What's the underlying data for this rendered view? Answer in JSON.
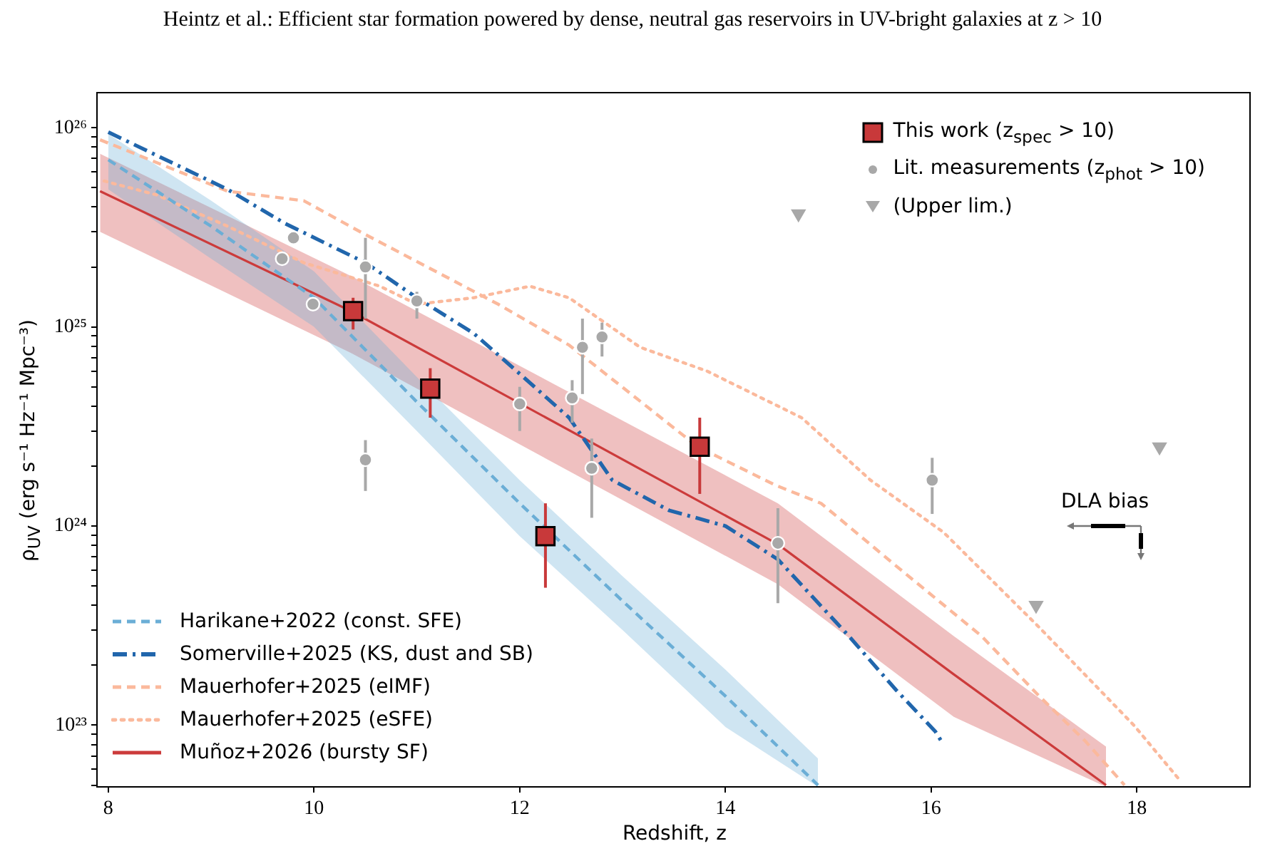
{
  "chart_data": {
    "type": "line",
    "title": "Heintz et al.: Efficient star formation powered by dense, neutral gas reservoirs in UV-bright galaxies at z > 10",
    "xlabel": "Redshift, z",
    "ylabel": "ρ$_{UV}$ (erg s⁻¹ Hz⁻¹ Mpc⁻³)",
    "annotations": [
      "DLA bias"
    ],
    "xlim": [
      7.89,
      19.1
    ],
    "xticks": [
      8,
      10,
      12,
      14,
      16,
      18
    ],
    "ylim": [
      4.9e+22,
      1.5e+26
    ],
    "log": true,
    "yticks": [
      {
        "value": 5e+22,
        "label": null
      },
      {
        "value": 6e+22,
        "label": null
      },
      {
        "value": 7e+22,
        "label": null
      },
      {
        "value": 8e+22,
        "label": null
      },
      {
        "value": 9e+22,
        "label": null
      },
      {
        "value": 1e+23,
        "label": "10²³"
      },
      {
        "value": 2e+23,
        "label": null
      },
      {
        "value": 3e+23,
        "label": null
      },
      {
        "value": 4e+23,
        "label": null
      },
      {
        "value": 5e+23,
        "label": null
      },
      {
        "value": 6e+23,
        "label": null
      },
      {
        "value": 7e+23,
        "label": null
      },
      {
        "value": 8e+23,
        "label": null
      },
      {
        "value": 9e+23,
        "label": null
      },
      {
        "value": 1e+24,
        "label": "10²⁴"
      },
      {
        "value": 2e+24,
        "label": null
      },
      {
        "value": 3e+24,
        "label": null
      },
      {
        "value": 4e+24,
        "label": null
      },
      {
        "value": 5e+24,
        "label": null
      },
      {
        "value": 6e+24,
        "label": null
      },
      {
        "value": 7e+24,
        "label": null
      },
      {
        "value": 8e+24,
        "label": null
      },
      {
        "value": 9e+24,
        "label": null
      },
      {
        "value": 1e+25,
        "label": "10²⁵"
      },
      {
        "value": 2e+25,
        "label": null
      },
      {
        "value": 3e+25,
        "label": null
      },
      {
        "value": 4e+25,
        "label": null
      },
      {
        "value": 5e+25,
        "label": null
      },
      {
        "value": 6e+25,
        "label": null
      },
      {
        "value": 7e+25,
        "label": null
      },
      {
        "value": 8e+25,
        "label": null
      },
      {
        "value": 9e+25,
        "label": null
      },
      {
        "value": 1e+26,
        "label": "10²⁶"
      }
    ],
    "grid": false,
    "legend": "bottom left",
    "series": [
      {
        "name": "Harikane+2022 (const. SFE)",
        "color": "#6baed6",
        "line_style": "dashed",
        "x": [
          8,
          9,
          10,
          11,
          12,
          13,
          14,
          14.9
        ],
        "values": [
          6.9e+25,
          3.2e+25,
          1.4e+25,
          4.2e+24,
          1.3e+24,
          4.2e+23,
          1.4e+23,
          5e+22
        ],
        "lower": [
          4.9e+25,
          2.2e+25,
          1e+25,
          3e+24,
          8.9e+23,
          3e+23,
          9.8e+22,
          4.9e+22
        ],
        "upper": [
          9.3e+25,
          4.3e+25,
          1.9e+25,
          5.6e+24,
          1.7e+24,
          5.6e+23,
          1.9e+23,
          6.8e+22
        ]
      },
      {
        "name": "Somerville+2025 (KS, dust and SB)",
        "color": "#2166ac",
        "line_style": "dashdot",
        "x": [
          8,
          9.16,
          9.72,
          10.5,
          11.0,
          11.55,
          11.97,
          12.48,
          12.9,
          13.45,
          14.0,
          14.51,
          15.2,
          15.66,
          16.04,
          16.1
        ],
        "values": [
          9.5e+25,
          4.9e+25,
          3.3e+25,
          2.1e+25,
          1.4e+25,
          9.3e+24,
          6e+24,
          3.5e+24,
          1.7e+24,
          1.2e+24,
          1e+24,
          6.8e+23,
          2.8e+23,
          1.5e+23,
          9.3e+22,
          8.3e+22
        ]
      },
      {
        "name": "Mauerhofer+2025 (eIMF)",
        "color": "#fbb99c",
        "line_style": "dashed",
        "x": [
          7.92,
          9.16,
          9.9,
          10.45,
          11.1,
          11.79,
          12.48,
          13.13,
          13.73,
          14.49,
          14.93,
          15.66,
          16.49,
          17.05,
          17.5,
          17.88
        ],
        "values": [
          8.7e+25,
          4.8e+25,
          4.3e+25,
          3e+25,
          2e+25,
          1.3e+25,
          8.1e+24,
          4.4e+24,
          2.5e+24,
          1.6e+24,
          1.3e+24,
          6.3e+23,
          2.8e+23,
          1.4e+23,
          8.3e+22,
          5e+22
        ]
      },
      {
        "name": "Mauerhofer+2025 (eSFE)",
        "color": "#fbb99c",
        "line_style": "dotted",
        "x": [
          7.96,
          8.47,
          9.16,
          9.9,
          10.64,
          11.0,
          11.55,
          12.1,
          12.48,
          13.17,
          13.82,
          14.74,
          15.41,
          16.12,
          17.05,
          17.97,
          18.43
        ],
        "values": [
          5.4e+25,
          4.6e+25,
          3.2e+25,
          2.1e+25,
          1.6e+25,
          1.3e+25,
          1.4e+25,
          1.6e+25,
          1.4e+25,
          7.9e+24,
          6e+24,
          3.5e+24,
          1.7e+24,
          9.3e+23,
          3.1e+23,
          1e+23,
          5.2e+22
        ]
      },
      {
        "name": "Muñoz+2026 (bursty SF)",
        "color": "#cc3b3b",
        "line_style": "solid",
        "x": [
          7.92,
          10.36,
          14.51,
          16.22,
          17.7
        ],
        "values": [
          4.8e+25,
          1.2e+25,
          8.1e+23,
          1.8e+23,
          5e+22
        ],
        "lower": [
          3e+25,
          7.4e+24,
          5.1e+23,
          1.1e+23,
          4.9e+22
        ],
        "upper": [
          7.4e+25,
          1.8e+25,
          1.3e+24,
          2.8e+23,
          7.8e+22
        ]
      },
      {
        "name": "This work (z$_{spec}$ > 10)",
        "type": "scatter",
        "color": "#c8393a",
        "marker": "square",
        "x": [
          10.38,
          11.13,
          12.25,
          13.75
        ],
        "values": [
          1.2e+25,
          4.9e+24,
          8.9e+23,
          2.5e+24
        ],
        "errors": [
          [
            9.7e+24,
            1.4e+25
          ],
          [
            3.5e+24,
            6.2e+24
          ],
          [
            4.9e+23,
            1.3e+24
          ],
          [
            1.45e+24,
            3.5e+24
          ]
        ]
      },
      {
        "name": "Lit. measurements (z$_{phot}$ > 10)",
        "type": "scatter",
        "color": "#a8a8a8",
        "marker": "circle",
        "x": [
          9.69,
          9.8,
          9.99,
          10.5,
          11.0,
          10.5,
          12.0,
          12.51,
          12.61,
          12.8,
          12.7,
          14.51,
          16.01
        ],
        "values": [
          2.2e+25,
          2.8e+25,
          1.3e+25,
          2e+25,
          1.35e+25,
          2.15e+24,
          4.1e+24,
          4.4e+24,
          7.9e+24,
          8.9e+24,
          1.95e+24,
          8.2e+23,
          1.7e+24
        ],
        "errors": [
          null,
          null,
          null,
          [
            1.1e+25,
            2.8e+25
          ],
          [
            1.1e+25,
            1.5e+25
          ],
          [
            1.5e+24,
            2.7e+24
          ],
          [
            3e+24,
            5e+24
          ],
          [
            3.3e+24,
            5.4e+24
          ],
          [
            4.6e+24,
            1.1e+25
          ],
          [
            7.1e+24,
            1.05e+25
          ],
          [
            1.1e+24,
            2.75e+24
          ],
          [
            4.1e+23,
            1.23e+24
          ],
          [
            1.15e+24,
            2.2e+24
          ]
        ]
      },
      {
        "name": "(Upper lim.)",
        "type": "scatter",
        "color": "#a8a8a8",
        "marker": "triangle",
        "x": [
          14.71,
          17.02,
          18.22
        ],
        "values": [
          3.7e+25,
          4e+23,
          2.5e+24
        ]
      }
    ]
  }
}
